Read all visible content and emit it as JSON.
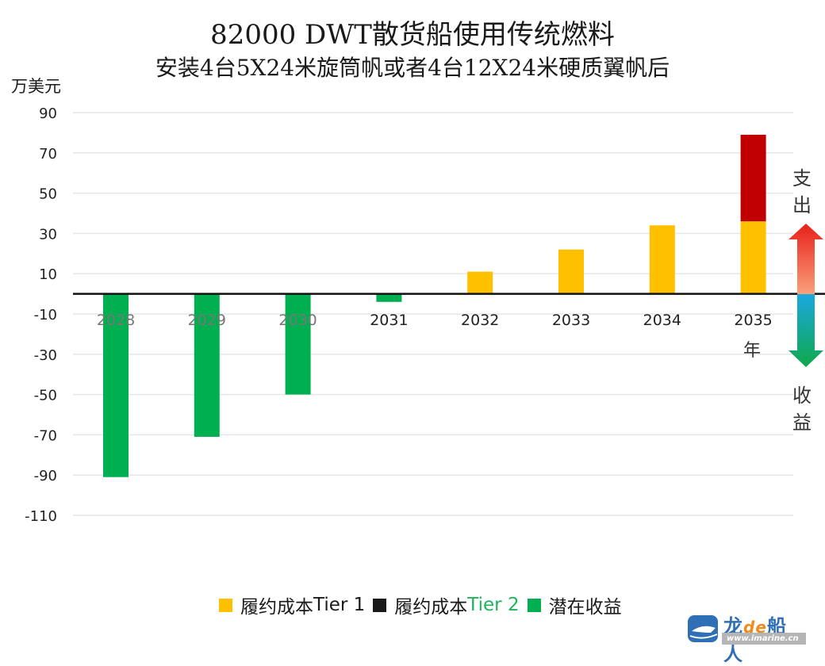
{
  "chart_data": {
    "type": "bar",
    "title": "82000 DWT散货船使用传统燃料",
    "subtitle": "安装4台5X24米旋筒帆或者4台12X24米硬质翼帆后",
    "ylabel": "万美元",
    "xlabel": "年",
    "ylim": [
      -110,
      90
    ],
    "yticks": [
      90,
      70,
      50,
      30,
      10,
      -10,
      -30,
      -50,
      -70,
      -90,
      -110
    ],
    "grid": true,
    "categories": [
      "2028",
      "2029",
      "2030",
      "2031",
      "2032",
      "2033",
      "2034",
      "2035"
    ],
    "stacked": true,
    "series": [
      {
        "name": "履约成本Tier 1",
        "color": "#FFC000",
        "values": [
          0,
          0,
          0,
          0,
          11,
          22,
          34,
          36
        ]
      },
      {
        "name": "履约成本Tier 2",
        "color": "#C00000",
        "values": [
          0,
          0,
          0,
          0,
          0,
          0,
          0,
          43
        ]
      },
      {
        "name": "潜在收益",
        "color": "#00B050",
        "values": [
          -91,
          -71,
          -50,
          -4,
          0,
          0,
          0,
          0
        ]
      }
    ],
    "legend_position": "bottom",
    "annotations": {
      "up_label": "支出",
      "down_label": "收益"
    }
  },
  "legend": {
    "items": [
      {
        "prefix": "履约成本",
        "suffix": "Tier 1",
        "color": "#FFC000"
      },
      {
        "prefix": "履约成本",
        "suffix": "Tier 2",
        "color": "#1a1a1a"
      },
      {
        "prefix": "潜在收益",
        "suffix": "",
        "color": "#00B050"
      }
    ]
  },
  "side": {
    "out_chars": [
      "支",
      "出"
    ],
    "in_chars": [
      "收",
      "益"
    ]
  },
  "logo": {
    "brand_part1": "龙",
    "brand_part2": "de",
    "brand_part3": "船人",
    "url": "www.imarine.cn"
  }
}
